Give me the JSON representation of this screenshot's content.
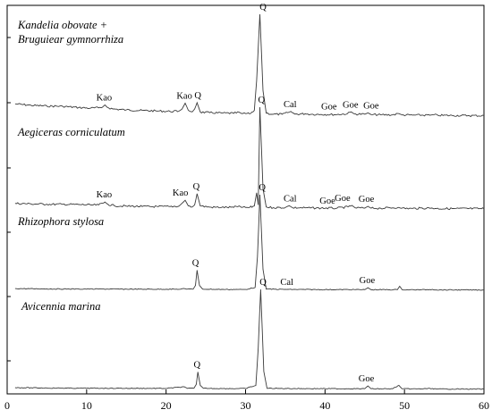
{
  "chart_data": {
    "type": "line",
    "xlim": [
      0,
      60
    ],
    "x_ticks": [
      0,
      10,
      20,
      30,
      40,
      50,
      60
    ],
    "x_tick_labels": [
      "0",
      "10",
      "20",
      "30",
      "40",
      "50",
      "60"
    ],
    "grid": false,
    "series": [
      {
        "name": "Kandelia obovate + Bruguiear gymnorrhiza",
        "label_lines": [
          "Kandelia obovate +",
          "Bruguiear gymnorrhiza"
        ],
        "points": [
          [
            1,
            12.0
          ],
          [
            3,
            10.6
          ],
          [
            5,
            9.9
          ],
          [
            7,
            9.6
          ],
          [
            9,
            8.4
          ],
          [
            10.5,
            7.8
          ],
          [
            11.5,
            8.2
          ],
          [
            12,
            8.8
          ],
          [
            12.3,
            11.0
          ],
          [
            12.6,
            8.7
          ],
          [
            13.3,
            7.0
          ],
          [
            15,
            6.1
          ],
          [
            17,
            5.5
          ],
          [
            19,
            5.0
          ],
          [
            20.5,
            4.6
          ],
          [
            21.6,
            4.8
          ],
          [
            22,
            6.8
          ],
          [
            22.4,
            12.7
          ],
          [
            22.8,
            5.7
          ],
          [
            23.3,
            4.2
          ],
          [
            23.6,
            7.0
          ],
          [
            23.9,
            13.2
          ],
          [
            24.3,
            4.0
          ],
          [
            25.5,
            3.3
          ],
          [
            27,
            3.0
          ],
          [
            28.5,
            2.7
          ],
          [
            29.2,
            3.8
          ],
          [
            29.5,
            2.5
          ],
          [
            30.5,
            2.3
          ],
          [
            31.1,
            5.5
          ],
          [
            31.4,
            35.0
          ],
          [
            31.8,
            100.0
          ],
          [
            32.2,
            25.0
          ],
          [
            32.6,
            3.0
          ],
          [
            33.5,
            1.8
          ],
          [
            34.6,
            1.8
          ],
          [
            35.3,
            3.3
          ],
          [
            35.7,
            4.6
          ],
          [
            36.2,
            1.9
          ],
          [
            37.5,
            2.3
          ],
          [
            38.3,
            1.8
          ],
          [
            39.5,
            1.7
          ],
          [
            41.5,
            1.5
          ],
          [
            42.8,
            2.3
          ],
          [
            43.3,
            4.1
          ],
          [
            43.7,
            2.1
          ],
          [
            45,
            1.8
          ],
          [
            45.4,
            3.2
          ],
          [
            45.8,
            1.5
          ],
          [
            47,
            1.3
          ],
          [
            48.5,
            1.2
          ],
          [
            49.3,
            2.5
          ],
          [
            49.7,
            1.1
          ],
          [
            51,
            1.0
          ],
          [
            53.2,
            0.9
          ],
          [
            53.6,
            1.4
          ],
          [
            54.2,
            0.8
          ],
          [
            56,
            0.6
          ],
          [
            58,
            0.5
          ],
          [
            60,
            0.4
          ]
        ]
      },
      {
        "name": "Aegiceras corniculatum",
        "label_lines": [
          "Aegiceras corniculatum"
        ],
        "points": [
          [
            1,
            5.5
          ],
          [
            3,
            5.0
          ],
          [
            5,
            4.7
          ],
          [
            7,
            4.6
          ],
          [
            9,
            4.4
          ],
          [
            10.5,
            3.9
          ],
          [
            11.5,
            4.0
          ],
          [
            12.3,
            6.8
          ],
          [
            12.7,
            4.5
          ],
          [
            13.5,
            3.2
          ],
          [
            15,
            2.8
          ],
          [
            17,
            2.5
          ],
          [
            19,
            2.3
          ],
          [
            20.5,
            2.4
          ],
          [
            21.6,
            2.8
          ],
          [
            22,
            5.5
          ],
          [
            22.4,
            8.6
          ],
          [
            22.8,
            3.0
          ],
          [
            23.3,
            2.0
          ],
          [
            23.6,
            4.0
          ],
          [
            23.9,
            15.0
          ],
          [
            24.3,
            3.0
          ],
          [
            25.5,
            1.8
          ],
          [
            27,
            1.6
          ],
          [
            28.5,
            1.6
          ],
          [
            29.2,
            3.1
          ],
          [
            29.5,
            1.5
          ],
          [
            30.5,
            1.5
          ],
          [
            31.1,
            3.0
          ],
          [
            31.4,
            16.0
          ],
          [
            31.6,
            4.0
          ],
          [
            31.8,
            100.0
          ],
          [
            32.2,
            20.0
          ],
          [
            32.6,
            2.0
          ],
          [
            33.5,
            1.3
          ],
          [
            35,
            1.4
          ],
          [
            35.5,
            3.2
          ],
          [
            35.9,
            1.3
          ],
          [
            37.5,
            1.1
          ],
          [
            39.5,
            0.9
          ],
          [
            41.5,
            0.8
          ],
          [
            42.9,
            2.1
          ],
          [
            43.4,
            3.5
          ],
          [
            43.8,
            1.1
          ],
          [
            45,
            0.9
          ],
          [
            45.4,
            2.6
          ],
          [
            45.8,
            0.8
          ],
          [
            47,
            0.7
          ],
          [
            49.2,
            1.6
          ],
          [
            49.6,
            0.6
          ],
          [
            51,
            0.5
          ],
          [
            53.4,
            1.0
          ],
          [
            54,
            0.4
          ],
          [
            56,
            0.4
          ],
          [
            60,
            0.3
          ]
        ]
      },
      {
        "name": "Rhizophora stylosa",
        "label_lines": [
          "Rhizophora stylosa"
        ],
        "points": [
          [
            1,
            1.8
          ],
          [
            5,
            1.4
          ],
          [
            9,
            1.3
          ],
          [
            12,
            1.3
          ],
          [
            16,
            1.1
          ],
          [
            20,
            1.1
          ],
          [
            21.8,
            1.1
          ],
          [
            22.2,
            2.0
          ],
          [
            22.6,
            1.1
          ],
          [
            23.4,
            1.1
          ],
          [
            23.7,
            5.0
          ],
          [
            23.9,
            21.0
          ],
          [
            24.2,
            5.0
          ],
          [
            24.6,
            1.2
          ],
          [
            27,
            0.9
          ],
          [
            29,
            0.8
          ],
          [
            30,
            0.8
          ],
          [
            31.2,
            3.0
          ],
          [
            31.5,
            35.0
          ],
          [
            31.8,
            100.0
          ],
          [
            32.2,
            22.0
          ],
          [
            32.6,
            1.2
          ],
          [
            35,
            0.9
          ],
          [
            40,
            0.7
          ],
          [
            45,
            0.7
          ],
          [
            45.4,
            2.6
          ],
          [
            45.8,
            0.6
          ],
          [
            49.1,
            0.6
          ],
          [
            49.4,
            4.2
          ],
          [
            49.7,
            0.6
          ],
          [
            52,
            0.5
          ],
          [
            53.5,
            0.9
          ],
          [
            54,
            0.4
          ],
          [
            60,
            0.3
          ]
        ]
      },
      {
        "name": "Avicennia marina",
        "label_lines": [
          "Avicennia marina"
        ],
        "points": [
          [
            1,
            1.8
          ],
          [
            5,
            1.4
          ],
          [
            9,
            1.2
          ],
          [
            12,
            1.2
          ],
          [
            16,
            1.1
          ],
          [
            20,
            1.0
          ],
          [
            22.3,
            2.6
          ],
          [
            22.7,
            1.0
          ],
          [
            23.5,
            1.2
          ],
          [
            23.8,
            5.0
          ],
          [
            24.0,
            17.5
          ],
          [
            24.3,
            4.0
          ],
          [
            24.7,
            1.1
          ],
          [
            27,
            0.9
          ],
          [
            29,
            0.8
          ],
          [
            30,
            0.9
          ],
          [
            31.3,
            4.0
          ],
          [
            31.6,
            42.0
          ],
          [
            31.9,
            100.0
          ],
          [
            32.3,
            18.0
          ],
          [
            32.7,
            1.1
          ],
          [
            35,
            0.9
          ],
          [
            38,
            0.8
          ],
          [
            40,
            0.8
          ],
          [
            43,
            0.7
          ],
          [
            45,
            0.7
          ],
          [
            45.4,
            3.5
          ],
          [
            45.8,
            0.6
          ],
          [
            48.5,
            0.6
          ],
          [
            49.3,
            4.1
          ],
          [
            49.7,
            0.6
          ],
          [
            51.5,
            0.5
          ],
          [
            53.5,
            0.9
          ],
          [
            54,
            0.4
          ],
          [
            56,
            0.4
          ],
          [
            60,
            0.3
          ]
        ]
      }
    ],
    "annotations": [
      {
        "series": 0,
        "text": "Kao",
        "x": 12.2,
        "y": 11.0
      },
      {
        "series": 0,
        "text": "Kao",
        "x": 22.3,
        "y": 12.7
      },
      {
        "series": 0,
        "text": "Q",
        "x": 24.0,
        "y": 13.2
      },
      {
        "series": 0,
        "text": "Q",
        "x": 32.2,
        "y": 100.0
      },
      {
        "series": 0,
        "text": "Cal",
        "x": 35.6,
        "y": 4.6
      },
      {
        "series": 0,
        "text": "Goe",
        "x": 40.5,
        "y": 2.3
      },
      {
        "series": 0,
        "text": "Goe",
        "x": 43.2,
        "y": 4.1
      },
      {
        "series": 0,
        "text": "Goe",
        "x": 45.8,
        "y": 3.2
      },
      {
        "series": 1,
        "text": "Kao",
        "x": 12.2,
        "y": 6.8
      },
      {
        "series": 1,
        "text": "Kao",
        "x": 21.8,
        "y": 8.6
      },
      {
        "series": 1,
        "text": "Q",
        "x": 23.8,
        "y": 15.0
      },
      {
        "series": 1,
        "text": "Q",
        "x": 32.0,
        "y": 100.0
      },
      {
        "series": 1,
        "text": "Cal",
        "x": 35.6,
        "y": 3.2
      },
      {
        "series": 1,
        "text": "Goe",
        "x": 40.3,
        "y": 0.9
      },
      {
        "series": 1,
        "text": "Goe",
        "x": 42.2,
        "y": 3.5
      },
      {
        "series": 1,
        "text": "Goe",
        "x": 45.2,
        "y": 2.6
      },
      {
        "series": 2,
        "text": "Q",
        "x": 23.7,
        "y": 21.0
      },
      {
        "series": 2,
        "text": "Q",
        "x": 32.1,
        "y": 100.0
      },
      {
        "series": 2,
        "text": "Cal",
        "x": 35.2,
        "y": 0.9
      },
      {
        "series": 2,
        "text": "Goe",
        "x": 45.3,
        "y": 2.6
      },
      {
        "series": 3,
        "text": "Q",
        "x": 23.9,
        "y": 17.5
      },
      {
        "series": 3,
        "text": "Q",
        "x": 32.2,
        "y": 100.0
      },
      {
        "series": 3,
        "text": "Goe",
        "x": 45.2,
        "y": 3.5
      }
    ]
  }
}
